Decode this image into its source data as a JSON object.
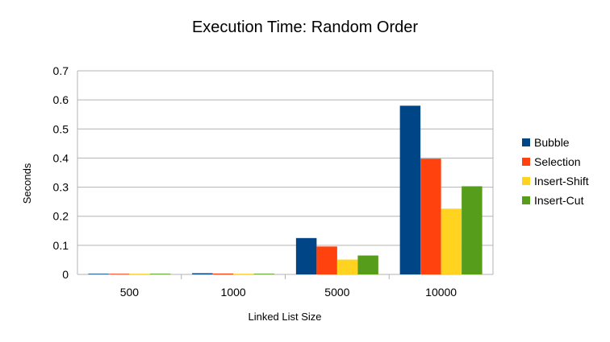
{
  "chart_data": {
    "type": "bar",
    "title": "Execution Time: Random Order",
    "xlabel": "Linked List Size",
    "ylabel": "Seconds",
    "categories": [
      "500",
      "1000",
      "5000",
      "10000"
    ],
    "ylim": [
      0,
      0.7
    ],
    "yticks": [
      "0",
      "0.1",
      "0.2",
      "0.3",
      "0.4",
      "0.5",
      "0.6",
      "0.7"
    ],
    "grid": true,
    "legend_position": "right",
    "series": [
      {
        "name": "Bubble",
        "color": "#004586",
        "values": [
          0.001,
          0.004,
          0.125,
          0.58
        ]
      },
      {
        "name": "Selection",
        "color": "#ff420e",
        "values": [
          0.001,
          0.003,
          0.096,
          0.398
        ]
      },
      {
        "name": "Insert-Shift",
        "color": "#ffd320",
        "values": [
          0.0005,
          0.001,
          0.051,
          0.226
        ]
      },
      {
        "name": "Insert-Cut",
        "color": "#579d1c",
        "values": [
          0.0005,
          0.001,
          0.065,
          0.303
        ]
      }
    ]
  }
}
